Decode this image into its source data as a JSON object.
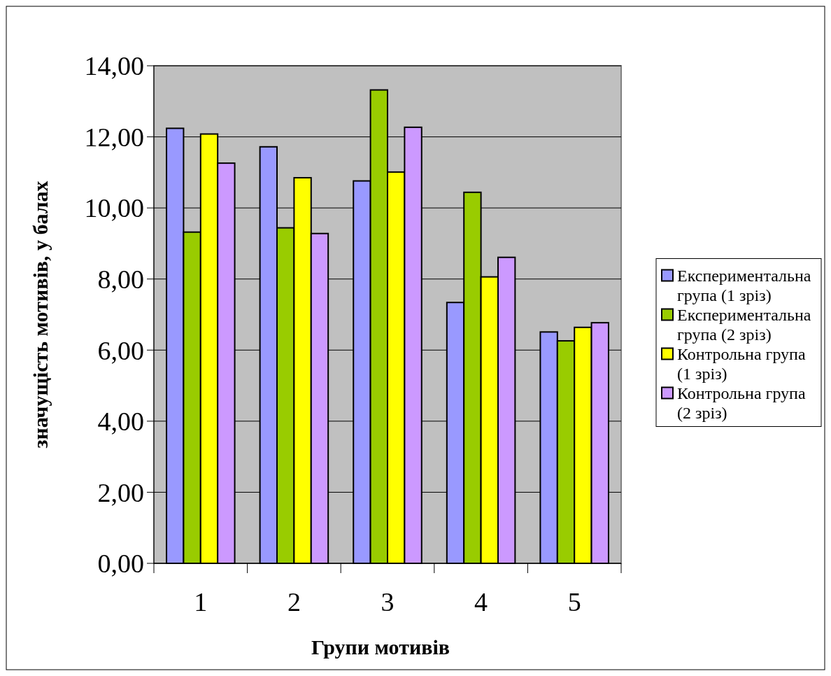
{
  "chart_data": {
    "type": "bar",
    "xlabel": "Групи мотивів",
    "ylabel": "значущість мотивів, у балах",
    "categories": [
      "1",
      "2",
      "3",
      "4",
      "5"
    ],
    "series": [
      {
        "name": "Експериментальна група (1 зріз)",
        "color": "#9999ff",
        "values": [
          12.24,
          11.72,
          10.76,
          7.34,
          6.51
        ]
      },
      {
        "name": "Експериментальна група (2 зріз)",
        "color": "#99cc00",
        "values": [
          9.32,
          9.44,
          13.32,
          10.44,
          6.26
        ]
      },
      {
        "name": "Контрольна група (1 зріз)",
        "color": "#ffff00",
        "values": [
          12.08,
          10.85,
          11.01,
          8.06,
          6.64
        ]
      },
      {
        "name": "Контрольна група (2 зріз)",
        "color": "#cc99ff",
        "values": [
          11.26,
          9.28,
          12.27,
          8.61,
          6.77
        ]
      }
    ],
    "ylim": [
      0,
      14
    ],
    "yticks": [
      {
        "value": 0,
        "label": "0,00"
      },
      {
        "value": 2,
        "label": "2,00"
      },
      {
        "value": 4,
        "label": "4,00"
      },
      {
        "value": 6,
        "label": "6,00"
      },
      {
        "value": 8,
        "label": "8,00"
      },
      {
        "value": 10,
        "label": "10,00"
      },
      {
        "value": 12,
        "label": "12,00"
      },
      {
        "value": 14,
        "label": "14,00"
      }
    ],
    "grid": "y",
    "legend": "right"
  }
}
